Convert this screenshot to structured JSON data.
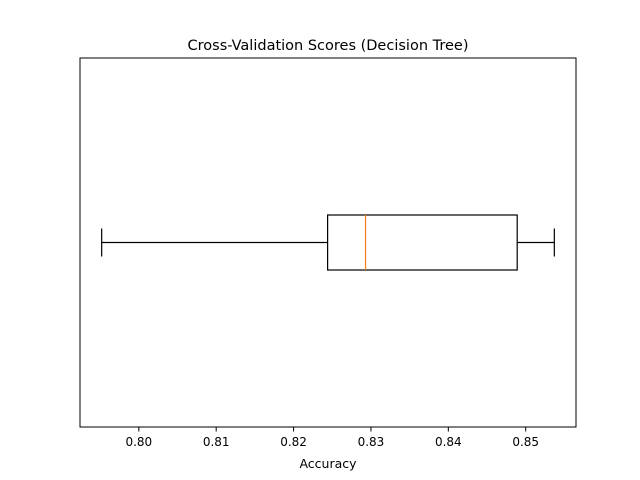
{
  "chart_data": {
    "type": "boxplot",
    "orientation": "horizontal",
    "title": "Cross-Validation Scores (Decision Tree)",
    "xlabel": "Accuracy",
    "ylabel": "",
    "xlim": [
      0.7924,
      0.8565
    ],
    "xticks": [
      0.8,
      0.81,
      0.82,
      0.83,
      0.84,
      0.85
    ],
    "xtick_labels": [
      "0.80",
      "0.81",
      "0.82",
      "0.83",
      "0.84",
      "0.85"
    ],
    "y_ticks_visible": false,
    "grid": false,
    "box": {
      "whisker_low": 0.7952,
      "q1": 0.8244,
      "median": 0.8293,
      "q3": 0.8489,
      "whisker_high": 0.8537
    },
    "colors": {
      "box": "#000000",
      "median": "#ff7f0e",
      "axes": "#000000"
    }
  }
}
